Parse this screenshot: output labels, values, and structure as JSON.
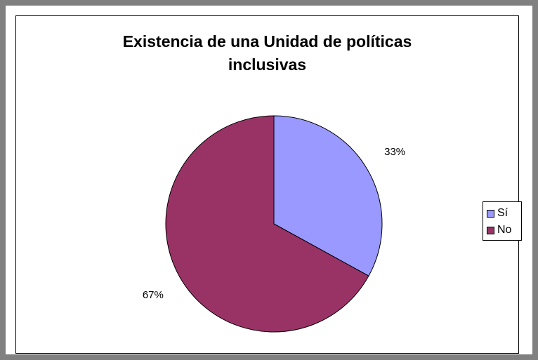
{
  "chart_data": {
    "type": "pie",
    "title": "Existencia de una Unidad de políticas\ninclusivas",
    "categories": [
      "Sí",
      "No"
    ],
    "values": [
      33,
      67
    ],
    "data_labels": [
      "33%",
      "67%"
    ],
    "colors": [
      "#9999ff",
      "#993366"
    ],
    "legend_position": "right"
  }
}
